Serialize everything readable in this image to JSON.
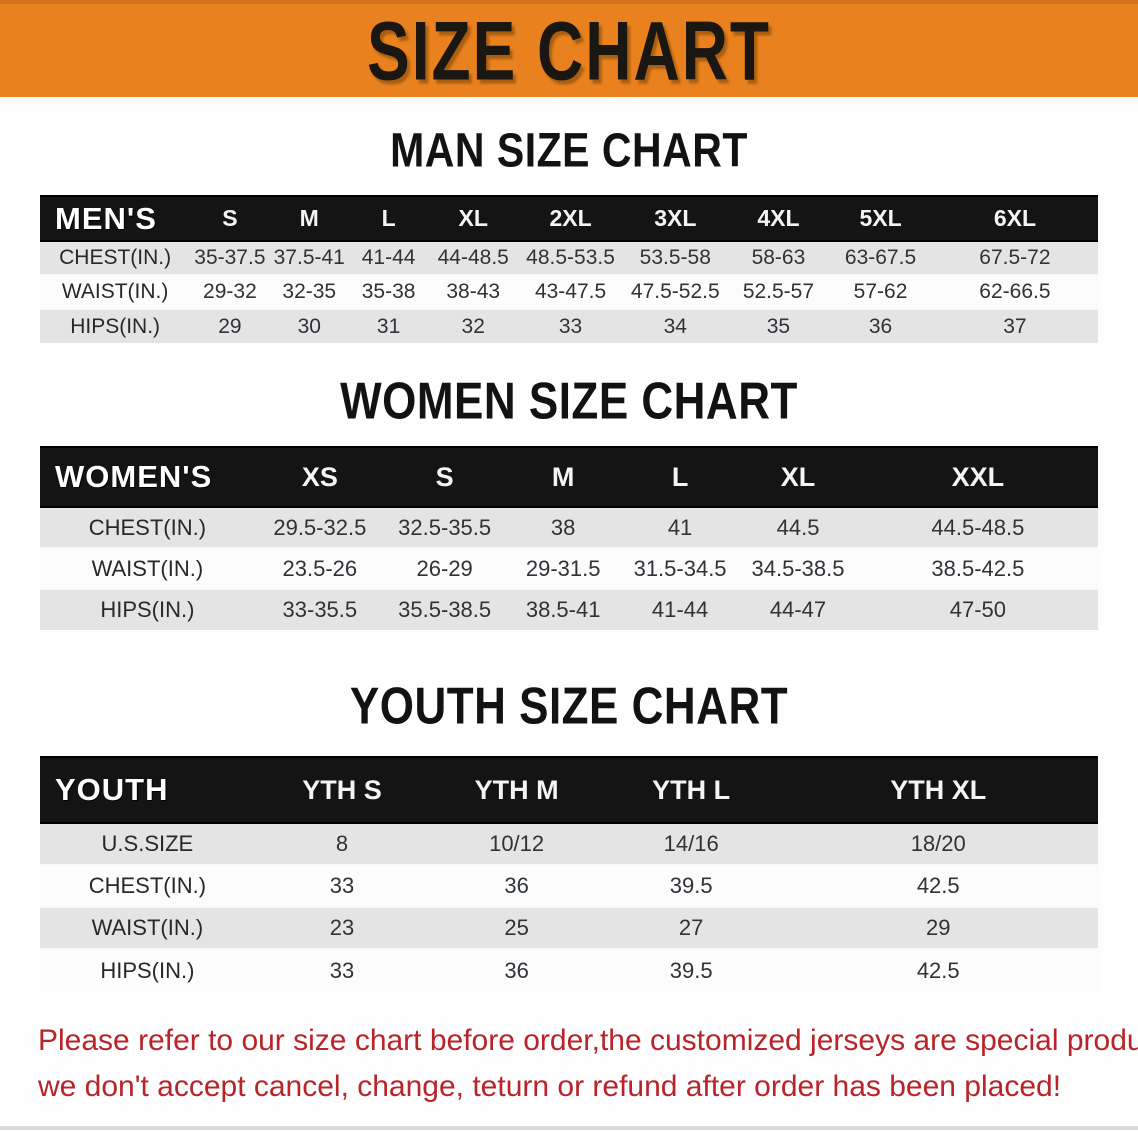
{
  "banner": {
    "title": "SIZE CHART"
  },
  "sections": [
    {
      "id": "men",
      "heading": "MAN SIZE CHART",
      "table": {
        "header_label": "MEN'S",
        "columns": [
          "S",
          "M",
          "L",
          "XL",
          "2XL",
          "3XL",
          "4XL",
          "5XL",
          "6XL"
        ],
        "rows": [
          {
            "label": "CHEST(IN.)",
            "values": [
              "35-37.5",
              "37.5-41",
              "41-44",
              "44-48.5",
              "48.5-53.5",
              "53.5-58",
              "58-63",
              "63-67.5",
              "67.5-72"
            ]
          },
          {
            "label": "WAIST(IN.)",
            "values": [
              "29-32",
              "32-35",
              "35-38",
              "38-43",
              "43-47.5",
              "47.5-52.5",
              "52.5-57",
              "57-62",
              "62-66.5"
            ]
          },
          {
            "label": "HIPS(IN.)",
            "values": [
              "29",
              "30",
              "31",
              "32",
              "33",
              "34",
              "35",
              "36",
              "37"
            ]
          }
        ]
      }
    },
    {
      "id": "women",
      "heading": "WOMEN SIZE CHART",
      "table": {
        "header_label": "WOMEN'S",
        "columns": [
          "XS",
          "S",
          "M",
          "L",
          "XL",
          "XXL"
        ],
        "rows": [
          {
            "label": "CHEST(IN.)",
            "values": [
              "29.5-32.5",
              "32.5-35.5",
              "38",
              "41",
              "44.5",
              "44.5-48.5"
            ]
          },
          {
            "label": "WAIST(IN.)",
            "values": [
              "23.5-26",
              "26-29",
              "29-31.5",
              "31.5-34.5",
              "34.5-38.5",
              "38.5-42.5"
            ]
          },
          {
            "label": "HIPS(IN.)",
            "values": [
              "33-35.5",
              "35.5-38.5",
              "38.5-41",
              "41-44",
              "44-47",
              "47-50"
            ]
          }
        ]
      }
    },
    {
      "id": "youth",
      "heading": "YOUTH SIZE CHART",
      "table": {
        "header_label": "YOUTH",
        "columns": [
          "YTH S",
          "YTH M",
          "YTH L",
          "YTH XL"
        ],
        "rows": [
          {
            "label": "U.S.SIZE",
            "values": [
              "8",
              "10/12",
              "14/16",
              "18/20"
            ]
          },
          {
            "label": "CHEST(IN.)",
            "values": [
              "33",
              "36",
              "39.5",
              "42.5"
            ]
          },
          {
            "label": "WAIST(IN.)",
            "values": [
              "23",
              "25",
              "27",
              "29"
            ]
          },
          {
            "label": "HIPS(IN.)",
            "values": [
              "33",
              "36",
              "39.5",
              "42.5"
            ]
          }
        ]
      }
    }
  ],
  "disclaimer": {
    "line1": "Please refer to our size chart before order,the customized jerseys are special products,",
    "line2": "we don't accept cancel, change, teturn or refund after order has been placed!"
  },
  "colors": {
    "banner_bg": "#e8811e",
    "table_header_bg": "#141414",
    "stripe_row": "#e4e4e4",
    "alt_row": "#fcfcfc",
    "disclaimer_text": "#b9242a"
  }
}
